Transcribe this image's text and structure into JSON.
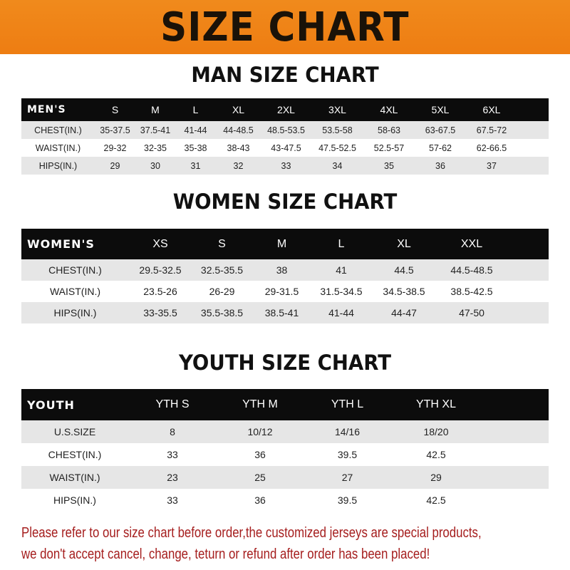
{
  "banner": {
    "title": "SIZE CHART",
    "color": "#f08a1c"
  },
  "men": {
    "title": "MAN SIZE CHART",
    "header": [
      "MEN'S",
      "S",
      "M",
      "L",
      "XL",
      "2XL",
      "3XL",
      "4XL",
      "5XL",
      "6XL"
    ],
    "rows": [
      [
        "CHEST(IN.)",
        "35-37.5",
        "37.5-41",
        "41-44",
        "44-48.5",
        "48.5-53.5",
        "53.5-58",
        "58-63",
        "63-67.5",
        "67.5-72"
      ],
      [
        "WAIST(IN.)",
        "29-32",
        "32-35",
        "35-38",
        "38-43",
        "43-47.5",
        "47.5-52.5",
        "52.5-57",
        "57-62",
        "62-66.5"
      ],
      [
        "HIPS(IN.)",
        "29",
        "30",
        "31",
        "32",
        "33",
        "34",
        "35",
        "36",
        "37"
      ]
    ]
  },
  "women": {
    "title": "WOMEN SIZE CHART",
    "header": [
      "WOMEN'S",
      "XS",
      "S",
      "M",
      "L",
      "XL",
      "XXL"
    ],
    "rows": [
      [
        "CHEST(IN.)",
        "29.5-32.5",
        "32.5-35.5",
        "38",
        "41",
        "44.5",
        "44.5-48.5"
      ],
      [
        "WAIST(IN.)",
        "23.5-26",
        "26-29",
        "29-31.5",
        "31.5-34.5",
        "34.5-38.5",
        "38.5-42.5"
      ],
      [
        "HIPS(IN.)",
        "33-35.5",
        "35.5-38.5",
        "38.5-41",
        "41-44",
        "44-47",
        "47-50"
      ]
    ]
  },
  "youth": {
    "title": "YOUTH SIZE CHART",
    "header": [
      "YOUTH",
      "YTH S",
      "YTH M",
      "YTH L",
      "YTH XL"
    ],
    "rows": [
      [
        "U.S.SIZE",
        "8",
        "10/12",
        "14/16",
        "18/20"
      ],
      [
        "CHEST(IN.)",
        "33",
        "36",
        "39.5",
        "42.5"
      ],
      [
        "WAIST(IN.)",
        "23",
        "25",
        "27",
        "29"
      ],
      [
        "HIPS(IN.)",
        "33",
        "36",
        "39.5",
        "42.5"
      ]
    ]
  },
  "note": {
    "line1": "Please refer to our size chart before order,the customized jerseys are special products,",
    "line2": "we don't accept cancel, change, teturn or refund after order has been placed!",
    "color": "#a51d1d"
  }
}
